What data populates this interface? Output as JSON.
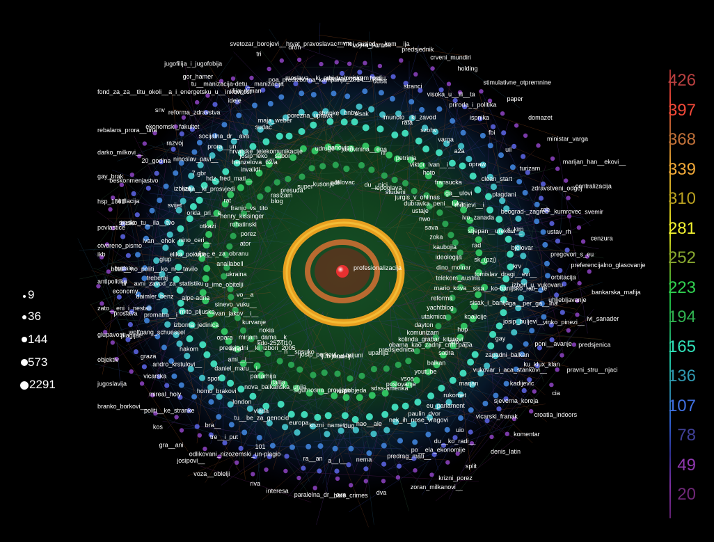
{
  "color_legend": {
    "values": [
      "426",
      "397",
      "368",
      "339",
      "310",
      "281",
      "252",
      "223",
      "194",
      "165",
      "136",
      "107",
      "78",
      "49",
      "20"
    ],
    "colors": [
      "#b84040",
      "#f04838",
      "#c07038",
      "#f0a838",
      "#b8a020",
      "#f0f030",
      "#88a830",
      "#30d050",
      "#30b050",
      "#30e0b8",
      "#3098b0",
      "#4070e0",
      "#404098",
      "#9038b0",
      "#702878"
    ]
  },
  "size_legend": {
    "values": [
      "9",
      "36",
      "144",
      "573",
      "2291"
    ]
  },
  "center": {
    "label": "profesionalizacija"
  },
  "nodes": [
    {
      "label": "mvm"
    },
    {
      "label": "predrag_mati__fred"
    },
    {
      "label": "sisak"
    },
    {
      "label": "jakovinina__ena"
    },
    {
      "label": "du__nici"
    },
    {
      "label": "vojna_parada"
    },
    {
      "label": "udba"
    },
    {
      "label": "imunolo__ki_zavod"
    },
    {
      "label": "itr"
    },
    {
      "label": "lepoglava"
    },
    {
      "label": "predsjednik"
    },
    {
      "label": "stranci"
    },
    {
      "label": "rata"
    },
    {
      "label": "petrinja"
    },
    {
      "label": "studeni"
    },
    {
      "label": "crveni_mundiri"
    },
    {
      "label": "visoka_u__ili__ta"
    },
    {
      "label": "szohv"
    },
    {
      "label": "viktor_ivan__i__"
    },
    {
      "label": "jurgis_v_ohlinas"
    },
    {
      "label": "holding"
    },
    {
      "label": "priroda_i_politika"
    },
    {
      "label": "varga"
    },
    {
      "label": "hoto"
    },
    {
      "label": "dubravka_peni__luka"
    },
    {
      "label": "stimulativne_otpremnine"
    },
    {
      "label": "ispnika"
    },
    {
      "label": "a2a"
    },
    {
      "label": "fransucka"
    },
    {
      "label": "ustaje"
    },
    {
      "label": "paper"
    },
    {
      "label": "fbi"
    },
    {
      "label": "opraw"
    },
    {
      "label": "ga__ulovi"
    },
    {
      "label": "nwo"
    },
    {
      "label": "domazet"
    },
    {
      "label": "uil"
    },
    {
      "label": "clean_start"
    },
    {
      "label": "matijevi__i"
    },
    {
      "label": "sava"
    },
    {
      "label": "ministar_varga"
    },
    {
      "label": "turizam"
    },
    {
      "label": "plagdani"
    },
    {
      "label": "ivo_zanada"
    },
    {
      "label": "zoka"
    },
    {
      "label": "marijan_han__ekovi__"
    },
    {
      "label": "zdravstveni_odgoj"
    },
    {
      "label": "beograd-_zagreb-_kumrovec"
    },
    {
      "label": "stjepan__urekovi__"
    },
    {
      "label": "kaubojia"
    },
    {
      "label": "centralizacija"
    },
    {
      "label": "rob"
    },
    {
      "label": "s_kim"
    },
    {
      "label": "rad"
    },
    {
      "label": "ideologija"
    },
    {
      "label": "svemir"
    },
    {
      "label": "ustav_rh"
    },
    {
      "label": "bjelovar"
    },
    {
      "label": "sk_(pzj)"
    },
    {
      "label": "dino_molnar"
    },
    {
      "label": "cenzura"
    },
    {
      "label": "pregovori_s_eu"
    },
    {
      "label": "krv"
    },
    {
      "label": "tomislav_dragi__evi__"
    },
    {
      "label": "telekom_austria"
    },
    {
      "label": "preferencijalno_glasovanje"
    },
    {
      "label": "orbitacija"
    },
    {
      "label": "izbori_u_vukovaru"
    },
    {
      "label": "sisa__ko-banijsko_rati__te"
    },
    {
      "label": "mario_kova__"
    },
    {
      "label": "bankarska_mafija"
    },
    {
      "label": "uhljebljavanje"
    },
    {
      "label": "ga__per_ga__ina"
    },
    {
      "label": "sisak_i_banija"
    },
    {
      "label": "reforma"
    },
    {
      "label": "ivi_sanader"
    },
    {
      "label": "vinko_pinezi__"
    },
    {
      "label": "josip_buljevi__"
    },
    {
      "label": "koalicije"
    },
    {
      "label": "yachtblog"
    },
    {
      "label": "predsjenica"
    },
    {
      "label": "poni__avanje"
    },
    {
      "label": "gay"
    },
    {
      "label": "hup"
    },
    {
      "label": "utakmica"
    },
    {
      "label": "pravni_stru__njaci"
    },
    {
      "label": "ku_klux_klan"
    },
    {
      "label": "zapadni_balkan"
    },
    {
      "label": "sdp"
    },
    {
      "label": "dayton"
    },
    {
      "label": "cia"
    },
    {
      "label": "kadijevic"
    },
    {
      "label": "vukovar_i_aca_stankovi__"
    },
    {
      "label": "satira"
    },
    {
      "label": "komunizam"
    },
    {
      "label": "croatia_indoors"
    },
    {
      "label": "sjeverna_koreja"
    },
    {
      "label": "marjan"
    },
    {
      "label": "balkan"
    },
    {
      "label": "kolinda_grabar_kitarevi__"
    },
    {
      "label": "komentar"
    },
    {
      "label": "vicarski_franak"
    },
    {
      "label": "rukomet"
    },
    {
      "label": "youtube"
    },
    {
      "label": "obama_kao_zadnji_crni_papa"
    },
    {
      "label": "denis_latin"
    },
    {
      "label": "uio"
    },
    {
      "label": "eu_parlament"
    },
    {
      "label": "vsoa"
    },
    {
      "label": "predsjednica"
    },
    {
      "label": "split"
    },
    {
      "label": "du__ko_radi__"
    },
    {
      "label": "paulin_dvor"
    },
    {
      "label": "poslovanje"
    },
    {
      "label": "upanija"
    },
    {
      "label": "krizni_porez"
    },
    {
      "label": "po__ela_ekonomije"
    },
    {
      "label": "nek_ih_nose_vragovi"
    },
    {
      "label": "sdss-amerika"
    },
    {
      "label": "brijuni"
    },
    {
      "label": "zoran_milkanovi__"
    },
    {
      "label": "predrag_mati__"
    },
    {
      "label": "nao__ale"
    },
    {
      "label": "pobjeda"
    },
    {
      "label": "ferdelji"
    },
    {
      "label": "dva"
    },
    {
      "label": "nema"
    },
    {
      "label": "dug"
    },
    {
      "label": "mup"
    },
    {
      "label": "ljubljana"
    },
    {
      "label": "hate_crimes"
    },
    {
      "label": "a__i__"
    },
    {
      "label": "krizni_namet"
    },
    {
      "label": "sigurnosna_provjera"
    },
    {
      "label": "josip_perkovi__"
    },
    {
      "label": "paralelna_dr__ava"
    },
    {
      "label": "ra__an"
    },
    {
      "label": "europa"
    },
    {
      "label": "nova_balkanska_unija"
    },
    {
      "label": "h__spsuko"
    },
    {
      "label": "interesa"
    },
    {
      "label": "odlikovani_nizozemski_un-plagio"
    },
    {
      "label": "tu__be_za_genocid"
    },
    {
      "label": "italija"
    },
    {
      "label": "predsjedni__ki_izbori_2005"
    },
    {
      "label": "riva"
    },
    {
      "label": "101"
    },
    {
      "label": "vlada"
    },
    {
      "label": "panarhija"
    },
    {
      "label": "kdo-2524l10"
    },
    {
      "label": "voza__oblelji"
    },
    {
      "label": "tre__i_put"
    },
    {
      "label": "london"
    },
    {
      "label": "daniel_maru__i__"
    },
    {
      "label": "mirjam_dama__k"
    },
    {
      "label": "josipovi__"
    },
    {
      "label": "bra__"
    },
    {
      "label": "homo_brakovi"
    },
    {
      "label": "ami__i__"
    },
    {
      "label": "nokia"
    },
    {
      "label": "gra__ani"
    },
    {
      "label": "politi__ke_stranke"
    },
    {
      "label": "spot"
    },
    {
      "label": "kola"
    },
    {
      "label": "kurvanje"
    },
    {
      "label": "kos"
    },
    {
      "label": "mireal_holy"
    },
    {
      "label": "andro_krstulovi__"
    },
    {
      "label": "opara"
    },
    {
      "label": "ivan_jakov__i__"
    },
    {
      "label": "branko_borkovi__"
    },
    {
      "label": "vicarska"
    },
    {
      "label": "hakom"
    },
    {
      "label": "izborna_jedinica"
    },
    {
      "label": "sinevo_vuku__"
    },
    {
      "label": "jugoslavija"
    },
    {
      "label": "graza"
    },
    {
      "label": "wolfgang_schuessel"
    },
    {
      "label": "mito_pljuska"
    },
    {
      "label": "vo__a"
    },
    {
      "label": "objektiv"
    },
    {
      "label": "plagijat"
    },
    {
      "label": "promatra__i"
    },
    {
      "label": "alpe-adria"
    },
    {
      "label": "u_ime_obitelji"
    },
    {
      "label": "glupavost"
    },
    {
      "label": "proslava"
    },
    {
      "label": "daimler_benz"
    },
    {
      "label": "dr__avni_zavod_za_statistiku"
    },
    {
      "label": "ukraina"
    },
    {
      "label": "zato__eni_i_nestali"
    },
    {
      "label": "economy"
    },
    {
      "label": "treberaj"
    },
    {
      "label": "bezli__no_politi__ko_ni__tavilo"
    },
    {
      "label": "anallabell"
    },
    {
      "label": "antipolitika"
    },
    {
      "label": "budale"
    },
    {
      "label": "glup"
    },
    {
      "label": "elika_pokupec"
    },
    {
      "label": "vije__e_za_obranu"
    },
    {
      "label": "ikb"
    },
    {
      "label": "otvoreno_pismo"
    },
    {
      "label": "ivan__ehok"
    },
    {
      "label": "nino_ceri__"
    },
    {
      "label": "ator"
    },
    {
      "label": "povlastice"
    },
    {
      "label": "bicikl"
    },
    {
      "label": "srpsko_tu__ila__tvo"
    },
    {
      "label": "otkazi"
    },
    {
      "label": "porez"
    },
    {
      "label": "hsp_1861"
    },
    {
      "label": "inflacija"
    },
    {
      "label": "svijet"
    },
    {
      "label": "orkla_pri__e"
    },
    {
      "label": "rohatinski"
    },
    {
      "label": "gay_brak"
    },
    {
      "label": "beskonmenjastvo"
    },
    {
      "label": "izbliza"
    },
    {
      "label": "rat"
    },
    {
      "label": "henry_kissinger"
    },
    {
      "label": "darko_milkovi__"
    },
    {
      "label": "20_godina"
    },
    {
      "label": "7.gbr"
    },
    {
      "label": "selja__ki_prosvjedi"
    },
    {
      "label": "franjo_vs_tito"
    },
    {
      "label": "rebalans_prora__una"
    },
    {
      "label": "razvoj"
    },
    {
      "label": "ninoslav_pavi__"
    },
    {
      "label": "hdz_fred_mati__"
    },
    {
      "label": "blog"
    },
    {
      "label": "snv"
    },
    {
      "label": "ekonomski_fakultet"
    },
    {
      "label": "prora__un"
    },
    {
      "label": "invalidi"
    },
    {
      "label": "rasizam"
    },
    {
      "label": "fond_za_za__titu_okoli__a_i_energetsku_u__inkovitost"
    },
    {
      "label": "reforma_zdravstva"
    },
    {
      "label": "socijalna_dr__ava"
    },
    {
      "label": "heinzelova_62/a"
    },
    {
      "label": "presuda"
    },
    {
      "label": "gor_hamer"
    },
    {
      "label": "ideje"
    },
    {
      "label": "sudac"
    },
    {
      "label": "josip_leko__sabor"
    },
    {
      "label": "super"
    },
    {
      "label": "jugofilija_i_jugofobija"
    },
    {
      "label": "ilija_rkman"
    },
    {
      "label": "maja_weber"
    },
    {
      "label": "hrvatske_telekomunikacije"
    },
    {
      "label": "kusonje"
    },
    {
      "label": "tri"
    },
    {
      "label": "tu__manizacija-detu__manizacija"
    },
    {
      "label": "porezna_uprava"
    },
    {
      "label": "udruge"
    },
    {
      "label": "edf"
    },
    {
      "label": "dron"
    },
    {
      "label": "poa_predizborna_kampanja_2014"
    },
    {
      "label": "stranke"
    },
    {
      "label": "banovina"
    },
    {
      "label": "lalovac"
    },
    {
      "label": "svetozar_borojevi__hrvat_pravoslavac__moj_susjed_-_kom__ija"
    },
    {
      "label": "moslava__ki_srbi_u_lonjskom_polju."
    },
    {
      "label": "bnbw"
    }
  ]
}
